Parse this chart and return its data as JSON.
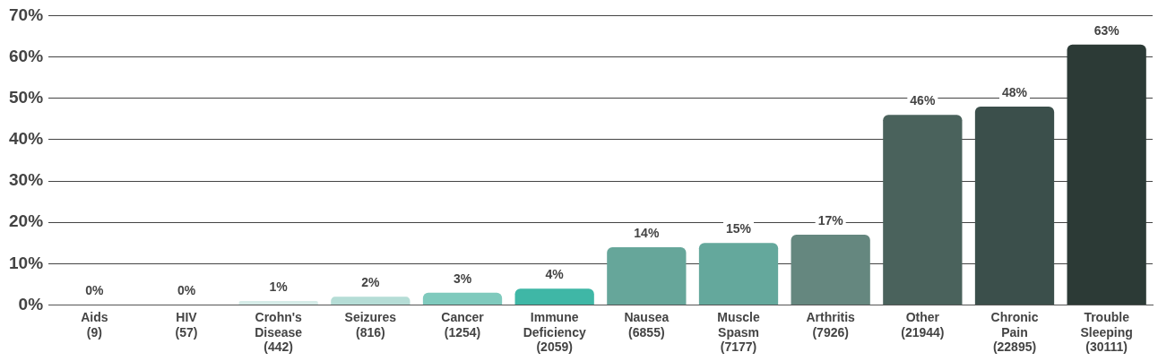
{
  "chart_data": {
    "type": "bar",
    "categories": [
      "Aids\n(9)",
      "HIV\n(57)",
      "Crohn's\nDisease\n(442)",
      "Seizures\n(816)",
      "Cancer\n(1254)",
      "Immune\nDeficiency\n(2059)",
      "Nausea\n(6855)",
      "Muscle\nSpasm\n(7177)",
      "Arthritis\n(7926)",
      "Other\n(21944)",
      "Chronic\nPain\n(22895)",
      "Trouble\nSleeping\n(30111)"
    ],
    "values": [
      0,
      0,
      1,
      2,
      3,
      4,
      14,
      15,
      17,
      46,
      48,
      63
    ],
    "colors": [
      "#e3f2ef",
      "#e3f2ef",
      "#d6ece8",
      "#b5ddd6",
      "#7fcabd",
      "#3fb7a6",
      "#66a69a",
      "#64a89c",
      "#65877f",
      "#4a625c",
      "#3b4f4b",
      "#2c3a36"
    ],
    "ylim": [
      0,
      70
    ],
    "yticks": [
      {
        "value": 0,
        "label": "0%"
      },
      {
        "value": 10,
        "label": "10%"
      },
      {
        "value": 20,
        "label": "20%"
      },
      {
        "value": 30,
        "label": "30%"
      },
      {
        "value": 40,
        "label": "40%"
      },
      {
        "value": 50,
        "label": "50%"
      },
      {
        "value": 60,
        "label": "60%"
      },
      {
        "value": 70,
        "label": "70%"
      }
    ],
    "value_labels": [
      "0%",
      "0%",
      "1%",
      "2%",
      "3%",
      "4%",
      "14%",
      "15%",
      "17%",
      "46%",
      "48%",
      "63%"
    ],
    "grid": "y",
    "legend": false
  }
}
